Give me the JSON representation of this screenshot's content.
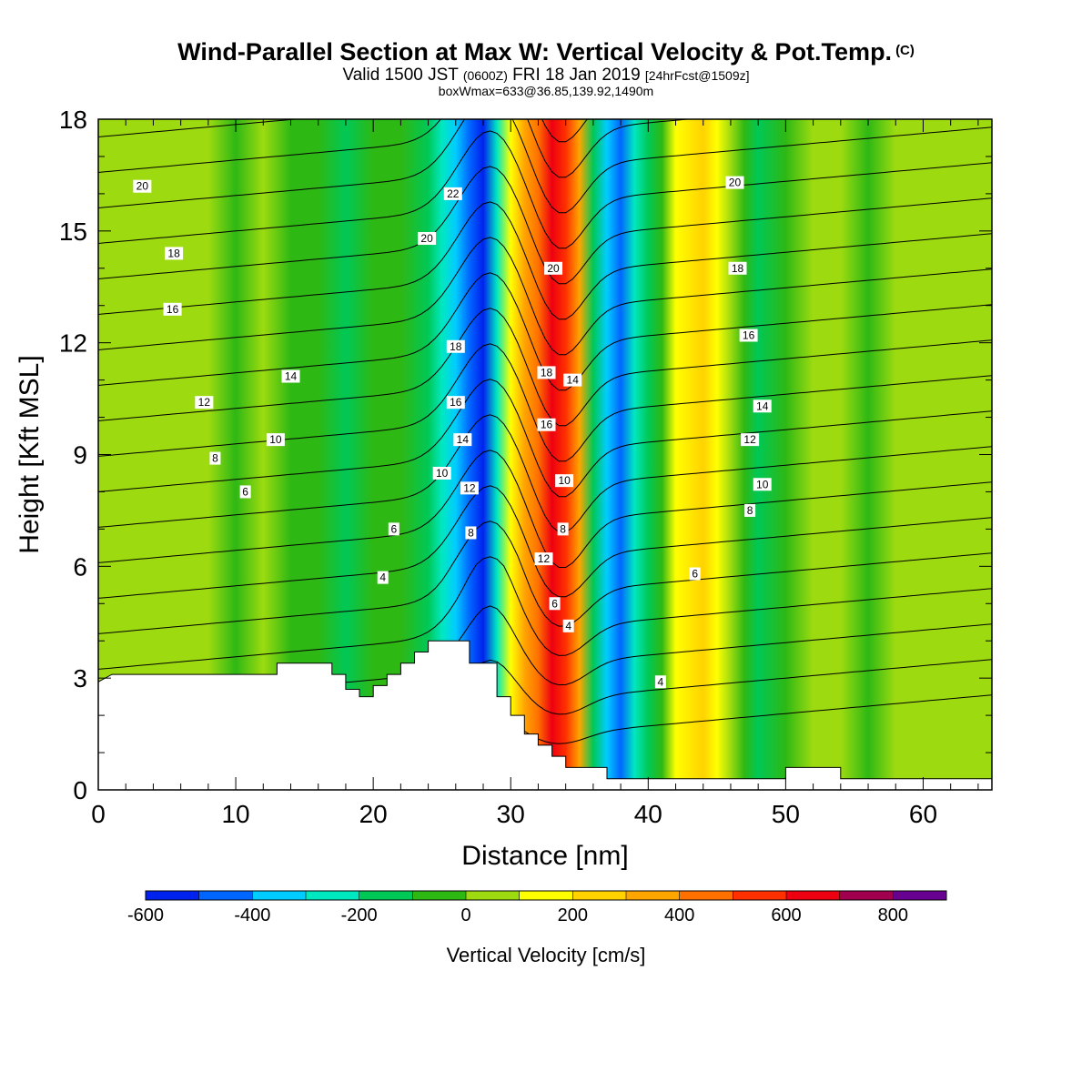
{
  "title": {
    "main": "Wind-Parallel Section at Max W: Vertical Velocity & Pot.Temp.",
    "main_suffix": "(C)",
    "valid_prefix": "Valid 1500 JST",
    "valid_utc": "(0600Z)",
    "valid_date": "FRI 18 Jan 2019",
    "forecast": "[24hrFcst@1509z]",
    "box_line": "boxWmax=633@36.85,139.92,1490m"
  },
  "chart_data": {
    "type": "heatmap",
    "title": "Wind-Parallel Section at Max W: Vertical Velocity & Pot.Temp.",
    "xlabel": "Distance [nm]",
    "ylabel": "Height [Kft MSL]",
    "xlim": [
      0,
      65
    ],
    "ylim": [
      0,
      18
    ],
    "xticks": [
      0,
      10,
      20,
      30,
      40,
      50,
      60
    ],
    "yticks": [
      0,
      3,
      6,
      9,
      12,
      15,
      18
    ],
    "colorbar": {
      "label": "Vertical Velocity [cm/s]",
      "levels": [
        -600,
        -500,
        -400,
        -300,
        -200,
        -100,
        0,
        100,
        200,
        300,
        400,
        500,
        600,
        700,
        800,
        900
      ],
      "colors": [
        "#0022ee",
        "#0066ff",
        "#00ccff",
        "#00e8c0",
        "#00c856",
        "#2eb814",
        "#9ddb10",
        "#ffff00",
        "#ffd200",
        "#ffa500",
        "#ff7000",
        "#ff3000",
        "#ee0010",
        "#a0004e",
        "#680090"
      ],
      "tick_labels": [
        -600,
        -400,
        -200,
        0,
        200,
        400,
        600,
        800
      ]
    },
    "vertical_velocity_bands": [
      {
        "x": 0,
        "w": 0
      },
      {
        "x": 2,
        "w": 0
      },
      {
        "x": 4,
        "w": 0
      },
      {
        "x": 6,
        "w": 0
      },
      {
        "x": 8,
        "w": 0
      },
      {
        "x": 10,
        "w": -20
      },
      {
        "x": 12,
        "w": 40
      },
      {
        "x": 14,
        "w": -10
      },
      {
        "x": 16,
        "w": -60
      },
      {
        "x": 18,
        "w": -120
      },
      {
        "x": 20,
        "w": -80
      },
      {
        "x": 22,
        "w": -100
      },
      {
        "x": 24,
        "w": -160
      },
      {
        "x": 25,
        "w": -240
      },
      {
        "x": 26,
        "w": -320
      },
      {
        "x": 27,
        "w": -430
      },
      {
        "x": 28,
        "w": -560
      },
      {
        "x": 29,
        "w": -300
      },
      {
        "x": 30,
        "w": 150
      },
      {
        "x": 31,
        "w": 320
      },
      {
        "x": 32,
        "w": 480
      },
      {
        "x": 33,
        "w": 633
      },
      {
        "x": 34,
        "w": 540
      },
      {
        "x": 35,
        "w": 300
      },
      {
        "x": 36,
        "w": -150
      },
      {
        "x": 37,
        "w": -320
      },
      {
        "x": 38,
        "w": -420
      },
      {
        "x": 39,
        "w": -250
      },
      {
        "x": 40,
        "w": -120
      },
      {
        "x": 41,
        "w": -20
      },
      {
        "x": 42,
        "w": 120
      },
      {
        "x": 44,
        "w": 220
      },
      {
        "x": 45,
        "w": 170
      },
      {
        "x": 46,
        "w": 50
      },
      {
        "x": 47,
        "w": -40
      },
      {
        "x": 48,
        "w": -130
      },
      {
        "x": 50,
        "w": -70
      },
      {
        "x": 52,
        "w": 30
      },
      {
        "x": 54,
        "w": 10
      },
      {
        "x": 56,
        "w": -20
      },
      {
        "x": 58,
        "w": 20
      },
      {
        "x": 60,
        "w": 20
      },
      {
        "x": 62,
        "w": 60
      },
      {
        "x": 64,
        "w": 40
      },
      {
        "x": 65,
        "w": 10
      }
    ],
    "terrain_profile": [
      [
        0,
        2.9
      ],
      [
        1,
        3.1
      ],
      [
        13,
        3.1
      ],
      [
        13,
        3.4
      ],
      [
        17,
        3.4
      ],
      [
        17,
        3.1
      ],
      [
        18,
        3.1
      ],
      [
        18,
        2.7
      ],
      [
        19,
        2.7
      ],
      [
        19,
        2.5
      ],
      [
        20,
        2.5
      ],
      [
        20,
        2.8
      ],
      [
        21,
        2.8
      ],
      [
        21,
        3.1
      ],
      [
        22,
        3.1
      ],
      [
        22,
        3.4
      ],
      [
        23,
        3.4
      ],
      [
        23,
        3.7
      ],
      [
        24,
        3.7
      ],
      [
        24,
        4.0
      ],
      [
        27,
        4.0
      ],
      [
        27,
        3.4
      ],
      [
        29,
        3.4
      ],
      [
        29,
        2.5
      ],
      [
        30,
        2.5
      ],
      [
        30,
        2.0
      ],
      [
        31,
        2.0
      ],
      [
        31,
        1.5
      ],
      [
        32,
        1.5
      ],
      [
        32,
        1.2
      ],
      [
        33,
        1.2
      ],
      [
        33,
        0.9
      ],
      [
        34,
        0.9
      ],
      [
        34,
        0.6
      ],
      [
        37,
        0.6
      ],
      [
        37,
        0.3
      ],
      [
        50,
        0.3
      ],
      [
        50,
        0.6
      ],
      [
        54,
        0.6
      ],
      [
        54,
        0.3
      ],
      [
        65,
        0.3
      ]
    ],
    "isentrope_labels": [
      {
        "x": 3.2,
        "y": 16.2,
        "text": "20"
      },
      {
        "x": 5.5,
        "y": 14.4,
        "text": "18"
      },
      {
        "x": 5.4,
        "y": 12.9,
        "text": "16"
      },
      {
        "x": 14.0,
        "y": 11.1,
        "text": "14"
      },
      {
        "x": 7.7,
        "y": 10.4,
        "text": "12"
      },
      {
        "x": 12.9,
        "y": 9.4,
        "text": "10"
      },
      {
        "x": 8.5,
        "y": 8.9,
        "text": "8"
      },
      {
        "x": 10.7,
        "y": 8.0,
        "text": "6"
      },
      {
        "x": 20.7,
        "y": 5.7,
        "text": "4"
      },
      {
        "x": 21.5,
        "y": 7.0,
        "text": "6"
      },
      {
        "x": 23.9,
        "y": 14.8,
        "text": "20"
      },
      {
        "x": 25.8,
        "y": 16.0,
        "text": "22"
      },
      {
        "x": 26.0,
        "y": 11.9,
        "text": "18"
      },
      {
        "x": 26.0,
        "y": 10.4,
        "text": "16"
      },
      {
        "x": 26.5,
        "y": 9.4,
        "text": "14"
      },
      {
        "x": 27.0,
        "y": 8.1,
        "text": "12"
      },
      {
        "x": 25.0,
        "y": 8.5,
        "text": "10"
      },
      {
        "x": 27.1,
        "y": 6.9,
        "text": "8"
      },
      {
        "x": 33.1,
        "y": 14.0,
        "text": "20"
      },
      {
        "x": 32.6,
        "y": 11.2,
        "text": "18"
      },
      {
        "x": 34.5,
        "y": 11.0,
        "text": "14"
      },
      {
        "x": 32.6,
        "y": 9.8,
        "text": "16"
      },
      {
        "x": 33.9,
        "y": 8.3,
        "text": "10"
      },
      {
        "x": 33.8,
        "y": 7.0,
        "text": "8"
      },
      {
        "x": 32.4,
        "y": 6.2,
        "text": "12"
      },
      {
        "x": 33.2,
        "y": 5.0,
        "text": "6"
      },
      {
        "x": 34.2,
        "y": 4.4,
        "text": "4"
      },
      {
        "x": 46.3,
        "y": 16.3,
        "text": "20"
      },
      {
        "x": 46.5,
        "y": 14.0,
        "text": "18"
      },
      {
        "x": 47.3,
        "y": 12.2,
        "text": "16"
      },
      {
        "x": 48.3,
        "y": 10.3,
        "text": "14"
      },
      {
        "x": 47.4,
        "y": 9.4,
        "text": "12"
      },
      {
        "x": 48.3,
        "y": 8.2,
        "text": "10"
      },
      {
        "x": 47.4,
        "y": 7.5,
        "text": "8"
      },
      {
        "x": 43.4,
        "y": 5.8,
        "text": "6"
      },
      {
        "x": 40.9,
        "y": 2.9,
        "text": "4"
      }
    ]
  }
}
